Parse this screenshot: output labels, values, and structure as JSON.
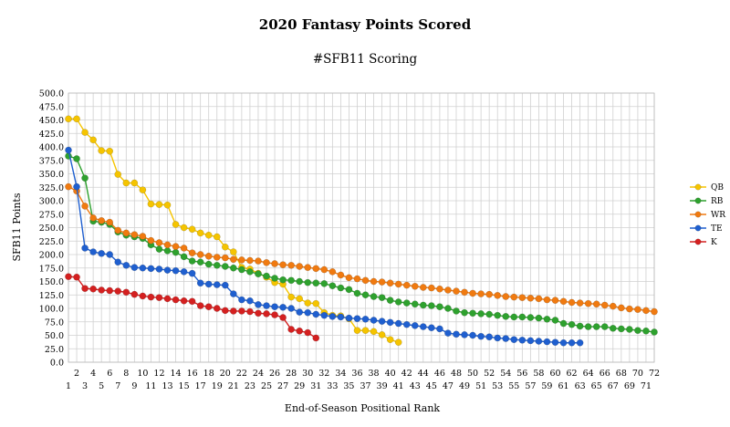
{
  "chart_data": {
    "type": "line",
    "title": "2020 Fantasy Points Scored",
    "subtitle": "#SFB11 Scoring",
    "xlabel": "End-of-Season Positional Rank",
    "ylabel": "SFB11 Points",
    "ylim": [
      0,
      500
    ],
    "yticks": [
      "0.0",
      "25.0",
      "50.0",
      "75.0",
      "100.0",
      "125.0",
      "150.0",
      "175.0",
      "200.0",
      "225.0",
      "250.0",
      "275.0",
      "300.0",
      "325.0",
      "350.0",
      "375.0",
      "400.0",
      "425.0",
      "450.0",
      "475.0",
      "500.0"
    ],
    "xlim": [
      1,
      72
    ],
    "grid": true,
    "legend_position": "right",
    "series": [
      {
        "name": "QB",
        "color": "#f5c400",
        "values": [
          452,
          452,
          427,
          413,
          393,
          392,
          349,
          333,
          333,
          320,
          294,
          293,
          292,
          256,
          250,
          247,
          240,
          236,
          233,
          214,
          205,
          176,
          173,
          165,
          158,
          148,
          145,
          121,
          118,
          110,
          109,
          92,
          87,
          86,
          81,
          59,
          59,
          57,
          51,
          42,
          37
        ]
      },
      {
        "name": "RB",
        "color": "#2ea12e",
        "values": [
          383,
          378,
          342,
          262,
          260,
          256,
          242,
          236,
          233,
          230,
          218,
          210,
          207,
          204,
          196,
          188,
          186,
          182,
          180,
          178,
          175,
          172,
          168,
          164,
          160,
          156,
          153,
          152,
          150,
          148,
          147,
          146,
          142,
          138,
          135,
          128,
          125,
          122,
          120,
          115,
          112,
          110,
          108,
          106,
          105,
          103,
          100,
          95,
          92,
          91,
          90,
          89,
          87,
          85,
          84,
          84,
          83,
          82,
          80,
          78,
          72,
          70,
          67,
          66,
          66,
          66,
          63,
          62,
          61,
          59,
          58,
          56
        ]
      },
      {
        "name": "WR",
        "color": "#f07a10",
        "values": [
          326,
          318,
          290,
          268,
          263,
          260,
          245,
          240,
          237,
          234,
          226,
          222,
          218,
          215,
          212,
          203,
          200,
          197,
          195,
          194,
          191,
          190,
          189,
          188,
          185,
          183,
          181,
          180,
          178,
          176,
          174,
          172,
          168,
          162,
          157,
          155,
          152,
          150,
          149,
          147,
          145,
          143,
          141,
          139,
          138,
          136,
          134,
          132,
          130,
          128,
          127,
          126,
          124,
          122,
          121,
          120,
          119,
          118,
          116,
          115,
          113,
          111,
          110,
          109,
          108,
          106,
          104,
          101,
          99,
          98,
          96,
          94
        ]
      },
      {
        "name": "TE",
        "color": "#1f5fcf",
        "values": [
          394,
          326,
          212,
          205,
          202,
          200,
          186,
          180,
          176,
          175,
          174,
          173,
          171,
          170,
          168,
          165,
          147,
          145,
          144,
          143,
          127,
          116,
          114,
          107,
          105,
          103,
          102,
          100,
          93,
          92,
          89,
          87,
          85,
          84,
          82,
          81,
          80,
          78,
          76,
          74,
          72,
          70,
          68,
          66,
          64,
          62,
          54,
          52,
          51,
          50,
          48,
          47,
          45,
          44,
          42,
          41,
          40,
          39,
          38,
          37,
          36,
          36,
          36
        ]
      },
      {
        "name": "K",
        "color": "#d42020",
        "values": [
          159,
          158,
          137,
          136,
          134,
          133,
          132,
          130,
          126,
          123,
          121,
          120,
          118,
          116,
          114,
          113,
          105,
          103,
          100,
          96,
          95,
          95,
          94,
          91,
          90,
          88,
          83,
          61,
          58,
          55,
          45
        ]
      }
    ]
  }
}
